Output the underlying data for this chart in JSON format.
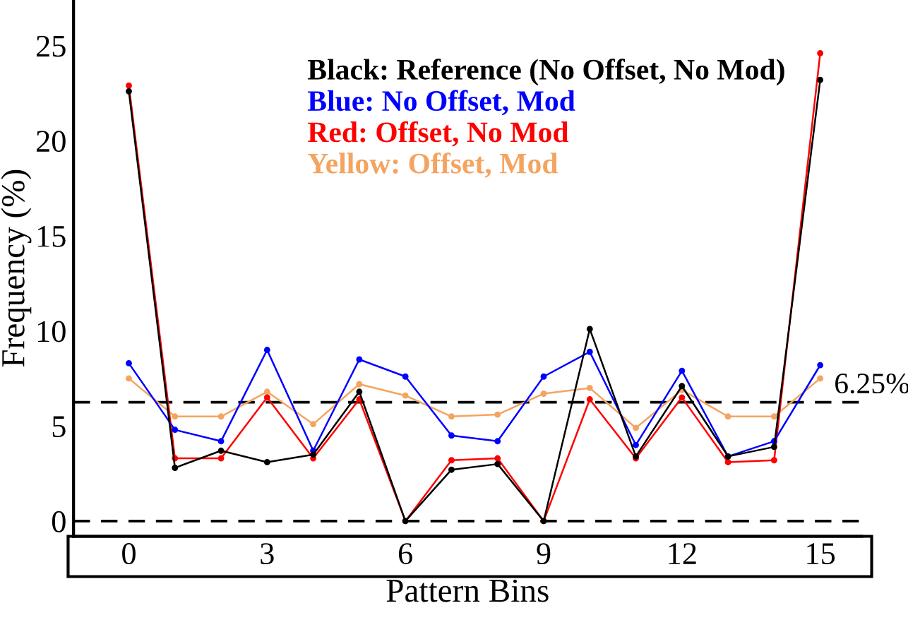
{
  "chart_data": {
    "type": "line",
    "xlabel": "Pattern Bins",
    "ylabel": "Frequency (%)",
    "x": [
      0,
      1,
      2,
      3,
      4,
      5,
      6,
      7,
      8,
      9,
      10,
      11,
      12,
      13,
      14,
      15
    ],
    "xlim": [
      -1.2,
      15.9
    ],
    "xticks": [
      0,
      3,
      6,
      9,
      12,
      15
    ],
    "ylim": [
      -0.8,
      27.4
    ],
    "yticks": [
      0,
      5,
      10,
      15,
      20,
      25
    ],
    "series": [
      {
        "name": "Black: Reference (No Offset, No Mod)",
        "color": "#000000",
        "values": [
          22.6,
          2.8,
          3.7,
          3.1,
          3.5,
          6.8,
          0,
          2.7,
          3.0,
          0,
          10.1,
          3.4,
          7.1,
          3.4,
          3.9,
          23.2
        ]
      },
      {
        "name": "Blue: No Offset, Mod",
        "color": "#0000ff",
        "values": [
          8.3,
          4.8,
          4.2,
          9.0,
          3.7,
          8.5,
          7.6,
          4.5,
          4.2,
          7.6,
          8.9,
          4.0,
          7.9,
          3.4,
          4.2,
          8.2
        ]
      },
      {
        "name": "Red: Offset, No Mod",
        "color": "#ff0000",
        "values": [
          22.9,
          3.3,
          3.3,
          6.5,
          3.3,
          6.4,
          0,
          3.2,
          3.3,
          0,
          6.4,
          3.3,
          6.5,
          3.1,
          3.2,
          24.6
        ]
      },
      {
        "name": "Yellow: Offset, Mod",
        "color": "#f4a460",
        "values": [
          7.5,
          5.5,
          5.5,
          6.8,
          5.1,
          7.2,
          6.6,
          5.5,
          5.6,
          6.7,
          7.0,
          4.9,
          6.9,
          5.5,
          5.5,
          7.5
        ]
      }
    ],
    "ref_lines": [
      {
        "axis": "y",
        "value": 6.25,
        "label": "6.25%",
        "color": "#000000",
        "line_style": "dashed"
      },
      {
        "axis": "y",
        "value": 0,
        "label": null,
        "color": "#000000",
        "line_style": "dashed"
      }
    ],
    "marker": "circle",
    "line_style": "solid",
    "grid": false,
    "legend": "top"
  }
}
